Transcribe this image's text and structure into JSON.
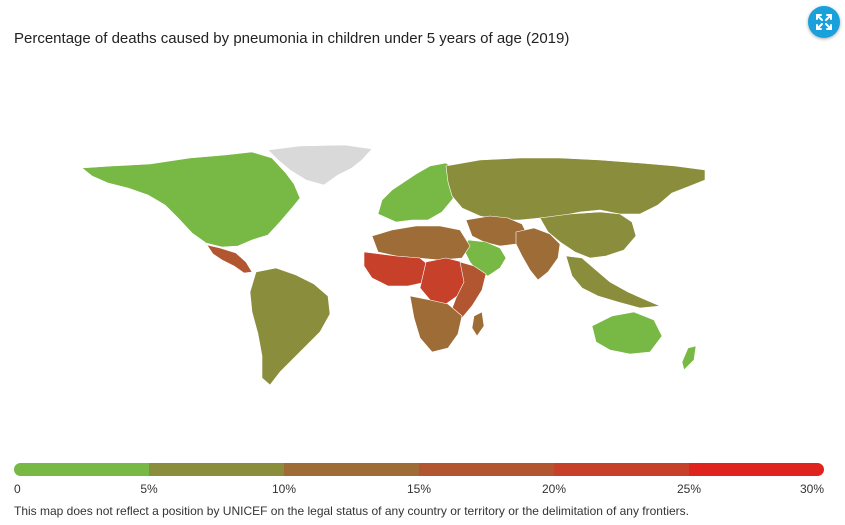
{
  "title": "Percentage of deaths caused by pneumonia in children under 5 years of age (2019)",
  "expand_button": {
    "icon": "expand-icon"
  },
  "legend": {
    "segments": [
      {
        "range": "0–5%",
        "color": "#78b844"
      },
      {
        "range": "5–10%",
        "color": "#8a8e3c"
      },
      {
        "range": "10–15%",
        "color": "#9e6c36"
      },
      {
        "range": "15–20%",
        "color": "#b15631"
      },
      {
        "range": "20–25%",
        "color": "#c6402a"
      },
      {
        "range": "25–30%",
        "color": "#df2420"
      }
    ],
    "labels": [
      "0",
      "5%",
      "10%",
      "15%",
      "20%",
      "25%",
      "30%"
    ]
  },
  "disclaimer": "This map does not reflect a position by UNICEF on the legal status of any country or territory or the delimitation of any frontiers.",
  "regions": [
    {
      "name": "North America",
      "class": "0–5%"
    },
    {
      "name": "Central America",
      "class": "15–20%"
    },
    {
      "name": "South America",
      "class": "5–10%"
    },
    {
      "name": "Europe",
      "class": "0–5%"
    },
    {
      "name": "Russia and Central Asia",
      "class": "5–10%"
    },
    {
      "name": "Middle East",
      "class": "10–15%"
    },
    {
      "name": "Arabian Peninsula",
      "class": "0–5%"
    },
    {
      "name": "South Asia",
      "class": "10–15%"
    },
    {
      "name": "East Asia",
      "class": "5–10%"
    },
    {
      "name": "Southeast Asia",
      "class": "5–10%"
    },
    {
      "name": "North Africa",
      "class": "10–15%"
    },
    {
      "name": "West Africa",
      "class": "20–25%"
    },
    {
      "name": "Central Africa",
      "class": "20–25%"
    },
    {
      "name": "East Africa",
      "class": "15–20%"
    },
    {
      "name": "Southern Africa",
      "class": "10–15%"
    },
    {
      "name": "Madagascar",
      "class": "10–15%"
    },
    {
      "name": "Australia",
      "class": "0–5%"
    },
    {
      "name": "Greenland",
      "class": "no data"
    }
  ]
}
